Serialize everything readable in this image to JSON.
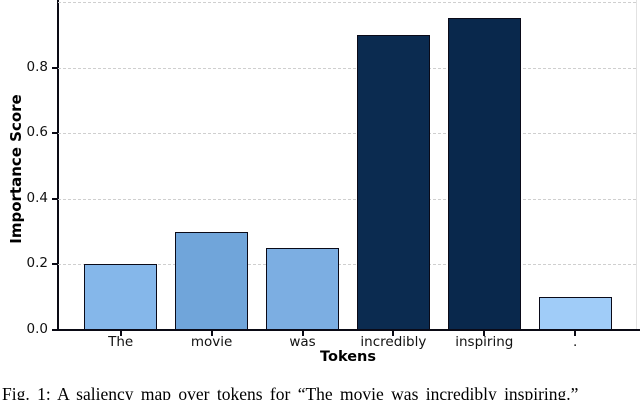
{
  "figure": {
    "caption": "Fig. 1: A saliency map over tokens for “The movie was incredibly inspiring.”"
  },
  "chart_data": {
    "type": "bar",
    "title": "",
    "xlabel": "Tokens",
    "ylabel": "Importance Score",
    "categories": [
      "The",
      "movie",
      "was",
      "incredibly",
      "inspiring",
      "."
    ],
    "values": [
      0.2,
      0.3,
      0.25,
      0.9,
      0.95,
      0.1
    ],
    "bar_colors": [
      "#85B7EA",
      "#70A5DA",
      "#7CAEE2",
      "#0B2B50",
      "#09284C",
      "#A0CCF8"
    ],
    "bar_edge_color": "#0a0a18",
    "ylim": [
      0,
      1.0
    ],
    "yticks": [
      0.0,
      0.2,
      0.4,
      0.6,
      0.8
    ],
    "gridlines": [
      0.2,
      0.4,
      0.6,
      0.8,
      1.0
    ],
    "grid": "horizontal dashed",
    "grid_color": "#cfcfcf",
    "legend": "none",
    "bar_color_meaning": "darker blue = higher importance"
  }
}
